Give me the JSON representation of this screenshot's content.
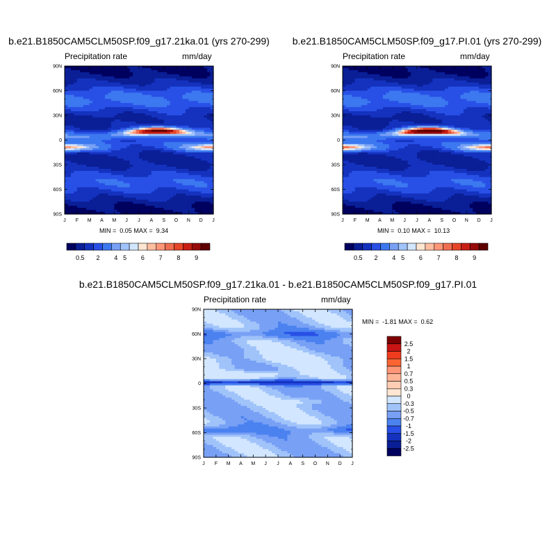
{
  "chart_data": [
    {
      "type": "heatmap",
      "id": "lgm",
      "title": "b.e21.B1850CAM5CLM50SP.f09_g17.21ka.01 (yrs 270-299)",
      "left_label": "Precipitation rate",
      "right_label": "mm/day",
      "x_ticks": [
        "J",
        "F",
        "M",
        "A",
        "M",
        "J",
        "J",
        "A",
        "S",
        "O",
        "N",
        "D",
        "J"
      ],
      "y_ticks": [
        "90N",
        "60N",
        "30N",
        "0",
        "30S",
        "60S",
        "90S"
      ],
      "min_label": "MIN =",
      "min_value": "0.05",
      "max_label": "MAX =",
      "max_value": "9.34",
      "itcz": {
        "lat_start": 4,
        "lat_peak": 11,
        "peak_month": 7.6,
        "peak_value": 9.2,
        "south_band_lat": -9,
        "south_band_value": 6.4
      }
    },
    {
      "type": "heatmap",
      "id": "pi",
      "title": "b.e21.B1850CAM5CLM50SP.f09_g17.PI.01 (yrs 270-299)",
      "left_label": "Precipitation rate",
      "right_label": "mm/day",
      "x_ticks": [
        "J",
        "F",
        "M",
        "A",
        "M",
        "J",
        "J",
        "A",
        "S",
        "O",
        "N",
        "D",
        "J"
      ],
      "y_ticks": [
        "90N",
        "60N",
        "30N",
        "0",
        "30S",
        "60S",
        "90S"
      ],
      "min_label": "MIN =",
      "min_value": "0.10",
      "max_label": "MAX =",
      "max_value": "10.13",
      "itcz": {
        "lat_start": 4,
        "lat_peak": 11,
        "peak_month": 7.0,
        "peak_value": 10.0,
        "south_band_lat": -9,
        "south_band_value": 6.8
      }
    },
    {
      "type": "heatmap",
      "id": "diff",
      "title": "b.e21.B1850CAM5CLM50SP.f09_g17.21ka.01 - b.e21.B1850CAM5CLM50SP.f09_g17.PI.01",
      "left_label": "Precipitation rate",
      "right_label": "mm/day",
      "x_ticks": [
        "J",
        "F",
        "M",
        "A",
        "M",
        "J",
        "J",
        "A",
        "S",
        "O",
        "N",
        "D",
        "J"
      ],
      "y_ticks": [
        "90N",
        "60N",
        "30N",
        "0",
        "30S",
        "60S",
        "90S"
      ],
      "min_label": "MIN =",
      "min_value": "-1.81",
      "max_label": "MAX =",
      "max_value": "0.62"
    }
  ],
  "colorbar_precip": {
    "labels": [
      "0.5",
      "2",
      "4",
      "5",
      "6",
      "7",
      "8",
      "9"
    ],
    "colors": [
      "#00005f",
      "#0a1e96",
      "#1432be",
      "#2850e6",
      "#3c78f0",
      "#78a0f5",
      "#a0c3fa",
      "#d2e6ff",
      "#ffe6d2",
      "#ffbea0",
      "#ff9678",
      "#f06e50",
      "#e64628",
      "#c81e14",
      "#960a0a",
      "#5f0000"
    ]
  },
  "colorbar_diff": {
    "labels": [
      "2.5",
      "2",
      "1.5",
      "1",
      "0.7",
      "0.5",
      "0.3",
      "0",
      "-0.3",
      "-0.5",
      "-0.7",
      "-1",
      "-1.5",
      "-2",
      "-2.5"
    ],
    "colors": [
      "#7d0000",
      "#c81414",
      "#f03c1e",
      "#fa6432",
      "#ff9678",
      "#ffb496",
      "#ffcdb4",
      "#ffe6d2",
      "#d2e6ff",
      "#a0c3fa",
      "#78a0f5",
      "#4b82f0",
      "#2850e6",
      "#1432be",
      "#0a1e96",
      "#00005f"
    ]
  }
}
